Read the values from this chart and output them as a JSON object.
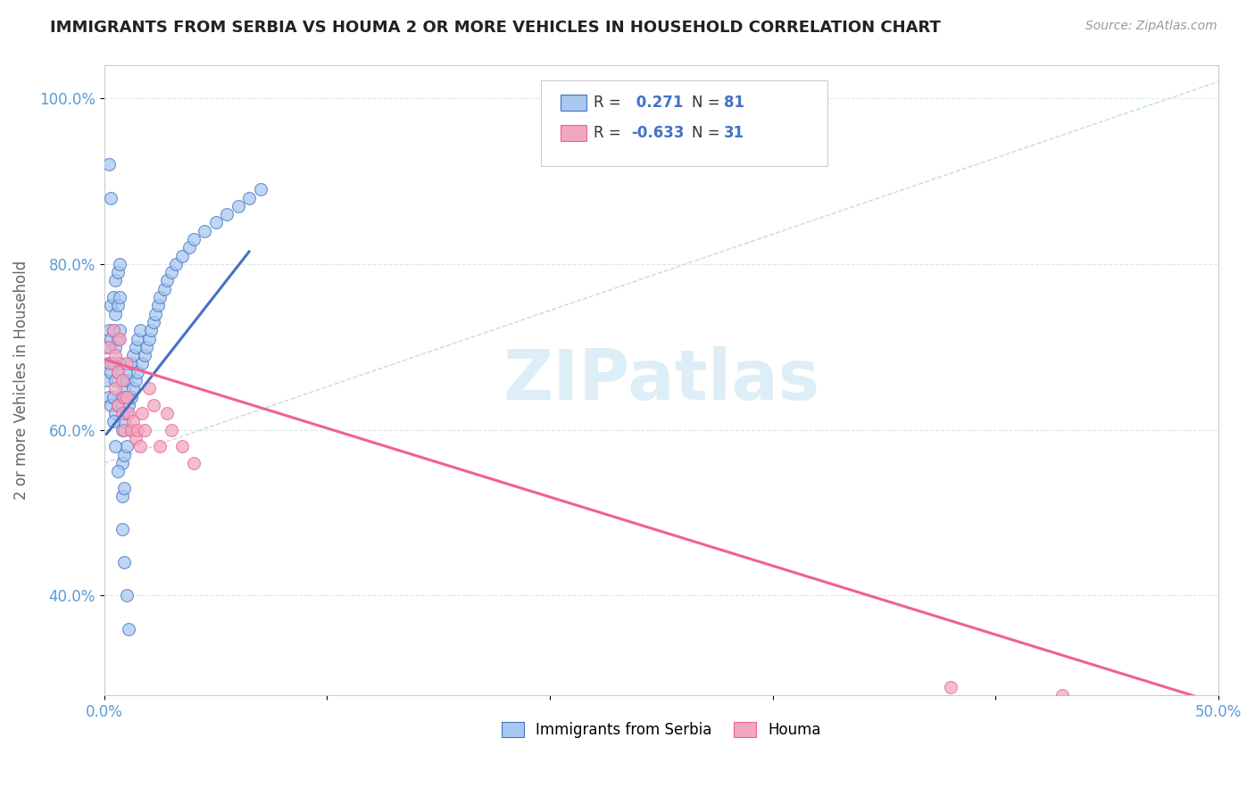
{
  "title": "IMMIGRANTS FROM SERBIA VS HOUMA 2 OR MORE VEHICLES IN HOUSEHOLD CORRELATION CHART",
  "source_text": "Source: ZipAtlas.com",
  "ylabel": "2 or more Vehicles in Household",
  "xlim": [
    0.0,
    0.5
  ],
  "ylim": [
    0.28,
    1.04
  ],
  "xticks": [
    0.0,
    0.1,
    0.2,
    0.3,
    0.4,
    0.5
  ],
  "xticklabels": [
    "0.0%",
    "",
    "",
    "",
    "",
    "50.0%"
  ],
  "yticks": [
    0.4,
    0.6,
    0.8,
    1.0
  ],
  "yticklabels": [
    "40.0%",
    "60.0%",
    "80.0%",
    "100.0%"
  ],
  "R_serbia": 0.271,
  "N_serbia": 81,
  "R_houma": -0.633,
  "N_houma": 31,
  "scatter_serbia_x": [
    0.001,
    0.001,
    0.002,
    0.002,
    0.002,
    0.003,
    0.003,
    0.003,
    0.003,
    0.004,
    0.004,
    0.004,
    0.004,
    0.005,
    0.005,
    0.005,
    0.005,
    0.005,
    0.006,
    0.006,
    0.006,
    0.006,
    0.006,
    0.007,
    0.007,
    0.007,
    0.007,
    0.008,
    0.008,
    0.008,
    0.008,
    0.009,
    0.009,
    0.009,
    0.009,
    0.01,
    0.01,
    0.01,
    0.011,
    0.011,
    0.012,
    0.012,
    0.012,
    0.013,
    0.013,
    0.014,
    0.014,
    0.015,
    0.015,
    0.016,
    0.017,
    0.018,
    0.019,
    0.02,
    0.021,
    0.022,
    0.023,
    0.024,
    0.025,
    0.027,
    0.028,
    0.03,
    0.032,
    0.035,
    0.038,
    0.04,
    0.045,
    0.05,
    0.055,
    0.06,
    0.065,
    0.07,
    0.008,
    0.009,
    0.01,
    0.011,
    0.006,
    0.005,
    0.004,
    0.003,
    0.002
  ],
  "scatter_serbia_y": [
    0.7,
    0.66,
    0.72,
    0.68,
    0.64,
    0.75,
    0.71,
    0.67,
    0.63,
    0.76,
    0.72,
    0.68,
    0.64,
    0.78,
    0.74,
    0.7,
    0.66,
    0.62,
    0.79,
    0.75,
    0.71,
    0.67,
    0.63,
    0.8,
    0.76,
    0.72,
    0.68,
    0.64,
    0.6,
    0.56,
    0.52,
    0.65,
    0.61,
    0.57,
    0.53,
    0.66,
    0.62,
    0.58,
    0.67,
    0.63,
    0.68,
    0.64,
    0.6,
    0.69,
    0.65,
    0.7,
    0.66,
    0.71,
    0.67,
    0.72,
    0.68,
    0.69,
    0.7,
    0.71,
    0.72,
    0.73,
    0.74,
    0.75,
    0.76,
    0.77,
    0.78,
    0.79,
    0.8,
    0.81,
    0.82,
    0.83,
    0.84,
    0.85,
    0.86,
    0.87,
    0.88,
    0.89,
    0.48,
    0.44,
    0.4,
    0.36,
    0.55,
    0.58,
    0.61,
    0.88,
    0.92
  ],
  "scatter_houma_x": [
    0.002,
    0.003,
    0.004,
    0.005,
    0.005,
    0.006,
    0.006,
    0.007,
    0.008,
    0.008,
    0.009,
    0.009,
    0.01,
    0.01,
    0.011,
    0.012,
    0.013,
    0.014,
    0.015,
    0.016,
    0.017,
    0.018,
    0.02,
    0.022,
    0.025,
    0.028,
    0.03,
    0.035,
    0.04,
    0.38,
    0.43
  ],
  "scatter_houma_y": [
    0.7,
    0.68,
    0.72,
    0.69,
    0.65,
    0.67,
    0.63,
    0.71,
    0.66,
    0.62,
    0.64,
    0.6,
    0.68,
    0.64,
    0.62,
    0.6,
    0.61,
    0.59,
    0.6,
    0.58,
    0.62,
    0.6,
    0.65,
    0.63,
    0.58,
    0.62,
    0.6,
    0.58,
    0.56,
    0.29,
    0.28
  ],
  "color_serbia": "#a8c8f0",
  "color_houma": "#f0a8c0",
  "trendline_serbia_color": "#4472c4",
  "trendline_houma_color": "#f06090",
  "ref_line_color": "#c8d8e8",
  "watermark_color": "#ddeef8",
  "background_color": "#ffffff"
}
